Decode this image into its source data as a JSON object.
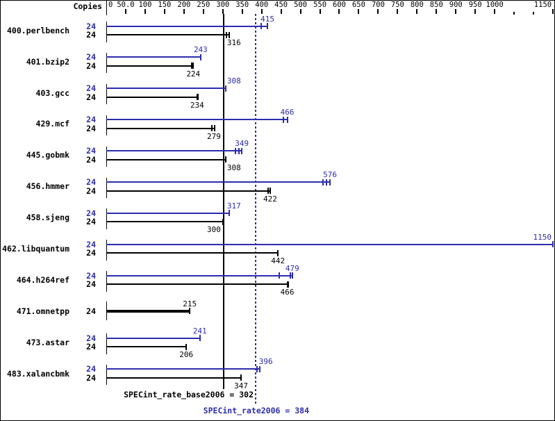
{
  "axis": {
    "header": "Copies",
    "min": 0,
    "max": 1150,
    "tick_interval": 50,
    "ticks": [
      {
        "v": 0,
        "label": "0"
      },
      {
        "v": 50,
        "label": "50.0"
      },
      {
        "v": 100,
        "label": "100"
      },
      {
        "v": 150,
        "label": "150"
      },
      {
        "v": 200,
        "label": "200"
      },
      {
        "v": 250,
        "label": "250"
      },
      {
        "v": 300,
        "label": "300"
      },
      {
        "v": 350,
        "label": "350"
      },
      {
        "v": 400,
        "label": "400"
      },
      {
        "v": 450,
        "label": "450"
      },
      {
        "v": 500,
        "label": "500"
      },
      {
        "v": 550,
        "label": "550"
      },
      {
        "v": 600,
        "label": "600"
      },
      {
        "v": 650,
        "label": "650"
      },
      {
        "v": 700,
        "label": "700"
      },
      {
        "v": 750,
        "label": "750"
      },
      {
        "v": 800,
        "label": "800"
      },
      {
        "v": 850,
        "label": "850"
      },
      {
        "v": 900,
        "label": "900"
      },
      {
        "v": 950,
        "label": "950"
      },
      {
        "v": 1000,
        "label": "1000"
      },
      {
        "v": 1050,
        "small": true
      },
      {
        "v": 1100,
        "small": true
      },
      {
        "v": 1150,
        "label": "1150"
      }
    ]
  },
  "colors": {
    "peak": "#2c2caf",
    "base": "#000000",
    "background": "#ffffff"
  },
  "benchmarks": [
    {
      "name": "400.perlbench",
      "bars": [
        {
          "kind": "peak",
          "copies": "24",
          "value": 415,
          "tick_offsets": [
            0,
            -9
          ]
        },
        {
          "kind": "base",
          "copies": "24",
          "value": 316,
          "tick_offsets": [
            0,
            -4
          ]
        }
      ]
    },
    {
      "name": "401.bzip2",
      "bars": [
        {
          "kind": "peak",
          "copies": "24",
          "value": 243,
          "tick_offsets": [
            0
          ]
        },
        {
          "kind": "base",
          "copies": "24",
          "value": 224,
          "tick_offsets": [
            0,
            -2
          ]
        }
      ]
    },
    {
      "name": "403.gcc",
      "bars": [
        {
          "kind": "peak",
          "copies": "24",
          "value": 308,
          "tick_offsets": [
            0
          ]
        },
        {
          "kind": "base",
          "copies": "24",
          "value": 234,
          "tick_offsets": [
            0
          ],
          "thick_end": true
        }
      ]
    },
    {
      "name": "429.mcf",
      "bars": [
        {
          "kind": "peak",
          "copies": "24",
          "value": 466,
          "tick_offsets": [
            0,
            -6
          ]
        },
        {
          "kind": "base",
          "copies": "24",
          "value": 279,
          "tick_offsets": [
            0,
            -4
          ]
        }
      ]
    },
    {
      "name": "445.gobmk",
      "bars": [
        {
          "kind": "peak",
          "copies": "24",
          "value": 349,
          "tick_offsets": [
            0,
            -4,
            -9
          ]
        },
        {
          "kind": "base",
          "copies": "24",
          "value": 308,
          "tick_offsets": [
            0
          ]
        }
      ]
    },
    {
      "name": "456.hmmer",
      "bars": [
        {
          "kind": "peak",
          "copies": "24",
          "value": 576,
          "tick_offsets": [
            0,
            -5,
            -10
          ]
        },
        {
          "kind": "base",
          "copies": "24",
          "value": 422,
          "tick_offsets": [
            0,
            -3
          ]
        }
      ]
    },
    {
      "name": "458.sjeng",
      "bars": [
        {
          "kind": "peak",
          "copies": "24",
          "value": 317,
          "tick_offsets": [
            0
          ]
        },
        {
          "kind": "base",
          "copies": "24",
          "value": 300,
          "tick_offsets": [
            0
          ],
          "thick_end": true
        }
      ]
    },
    {
      "name": "462.libquantum",
      "bars": [
        {
          "kind": "peak",
          "copies": "24",
          "value": 1150,
          "tick_offsets": [
            0
          ]
        },
        {
          "kind": "base",
          "copies": "24",
          "value": 442,
          "tick_offsets": [
            0
          ]
        }
      ]
    },
    {
      "name": "464.h264ref",
      "bars": [
        {
          "kind": "peak",
          "copies": "24",
          "value": 479,
          "tick_offsets": [
            0,
            -3,
            -19
          ]
        },
        {
          "kind": "base",
          "copies": "24",
          "value": 466,
          "tick_offsets": [
            0
          ],
          "thick_end": true
        }
      ]
    },
    {
      "name": "471.omnetpp",
      "bars": [
        {
          "kind": "single",
          "copies": "24",
          "value": 215,
          "tick_offsets": [
            0
          ],
          "thick": true
        }
      ]
    },
    {
      "name": "473.astar",
      "bars": [
        {
          "kind": "peak",
          "copies": "24",
          "value": 241,
          "tick_offsets": [
            0
          ]
        },
        {
          "kind": "base",
          "copies": "24",
          "value": 206,
          "tick_offsets": [
            0
          ]
        }
      ]
    },
    {
      "name": "483.xalancbmk",
      "bars": [
        {
          "kind": "peak",
          "copies": "24",
          "value": 396,
          "tick_offsets": [
            0,
            -4
          ]
        },
        {
          "kind": "base",
          "copies": "24",
          "value": 347,
          "tick_offsets": [
            0
          ]
        }
      ]
    }
  ],
  "reference_lines": [
    {
      "metric": "SPECint_rate_base2006",
      "value": 302,
      "style": "solid",
      "color": "#000000"
    },
    {
      "metric": "SPECint_rate2006",
      "value": 384,
      "style": "dotted",
      "color": "#2c2caf"
    }
  ],
  "summary": {
    "base": {
      "metric": "SPECint_rate_base2006",
      "value": 302,
      "text": "SPECint_rate_base2006 = 302"
    },
    "peak": {
      "metric": "SPECint_rate2006",
      "value": 384,
      "text": "SPECint_rate2006 = 384"
    }
  },
  "chart_data": {
    "type": "bar",
    "orientation": "horizontal",
    "title": "",
    "copies_header": "Copies",
    "categories": [
      "400.perlbench",
      "401.bzip2",
      "403.gcc",
      "429.mcf",
      "445.gobmk",
      "456.hmmer",
      "458.sjeng",
      "462.libquantum",
      "464.h264ref",
      "471.omnetpp",
      "473.astar",
      "483.xalancbmk"
    ],
    "series": [
      {
        "name": "peak (SPECint_rate2006)",
        "color": "#2c2caf",
        "copies": [
          24,
          24,
          24,
          24,
          24,
          24,
          24,
          24,
          24,
          24,
          24,
          24
        ],
        "values": [
          415,
          243,
          308,
          466,
          349,
          576,
          317,
          1150,
          479,
          215,
          241,
          396
        ]
      },
      {
        "name": "base (SPECint_rate_base2006)",
        "color": "#000000",
        "copies": [
          24,
          24,
          24,
          24,
          24,
          24,
          24,
          24,
          24,
          24,
          24,
          24
        ],
        "values": [
          316,
          224,
          234,
          279,
          308,
          422,
          300,
          442,
          466,
          215,
          206,
          347
        ]
      }
    ],
    "notes": "471.omnetpp is drawn as a single bold bar (base = peak = 215)",
    "xlabel": "",
    "ylabel": "",
    "xlim": [
      0,
      1150
    ],
    "grid": false,
    "legend": false,
    "reference_lines": [
      {
        "label": "SPECint_rate_base2006 = 302",
        "x": 302
      },
      {
        "label": "SPECint_rate2006 = 384",
        "x": 384
      }
    ]
  }
}
